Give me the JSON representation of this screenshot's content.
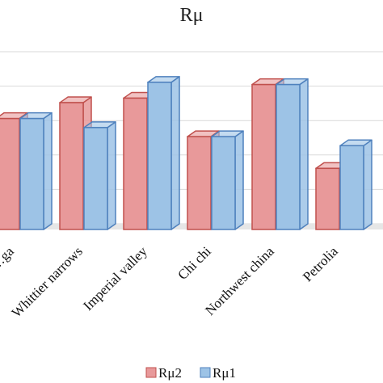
{
  "chart_data": {
    "type": "bar",
    "title": "Rμ",
    "categories": [
      "…ga",
      "Whittier narrows",
      "Imperial valley",
      "Chi chi",
      "Northwest china",
      "Petrolia"
    ],
    "series": [
      {
        "name": "Rμ2",
        "values": [
          0.49,
          0.56,
          0.58,
          0.41,
          0.64,
          0.27
        ],
        "color": "#e8999a",
        "stroke": "#c0504d"
      },
      {
        "name": "Rμ1",
        "values": [
          0.49,
          0.45,
          0.65,
          0.41,
          0.64,
          0.37
        ],
        "color": "#9dc3e6",
        "stroke": "#4f81bd"
      }
    ],
    "ylim": [
      0,
      0.76
    ],
    "grid": true,
    "legend": "bottom",
    "xlabel": "",
    "ylabel": ""
  }
}
